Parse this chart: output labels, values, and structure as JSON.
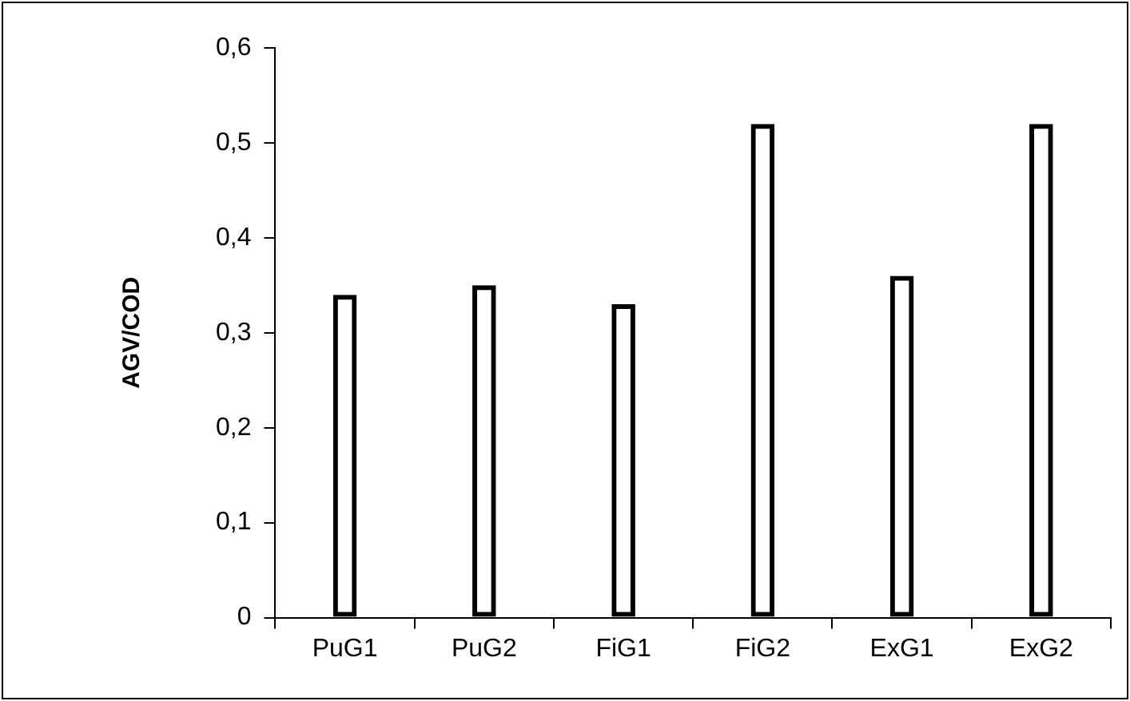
{
  "chart_data": {
    "type": "bar",
    "ylabel": "AGV/COD",
    "categories": [
      "PuG1",
      "PuG2",
      "FiG1",
      "FiG2",
      "ExG1",
      "ExG2"
    ],
    "values": [
      0.34,
      0.35,
      0.33,
      0.52,
      0.36,
      0.52
    ],
    "color": "#000000",
    "ylim": [
      0,
      0.6
    ],
    "yticks": [
      0,
      {
        "value": 0.1,
        "label": "0,1"
      },
      {
        "value": 0.2,
        "label": "0,2"
      },
      {
        "value": 0.3,
        "label": "0,3"
      },
      {
        "value": 0.4,
        "label": "0,4"
      },
      {
        "value": 0.5,
        "label": "0,5"
      },
      {
        "value": 0.6,
        "label": "0,6"
      }
    ],
    "grid": false,
    "legend": false
  }
}
